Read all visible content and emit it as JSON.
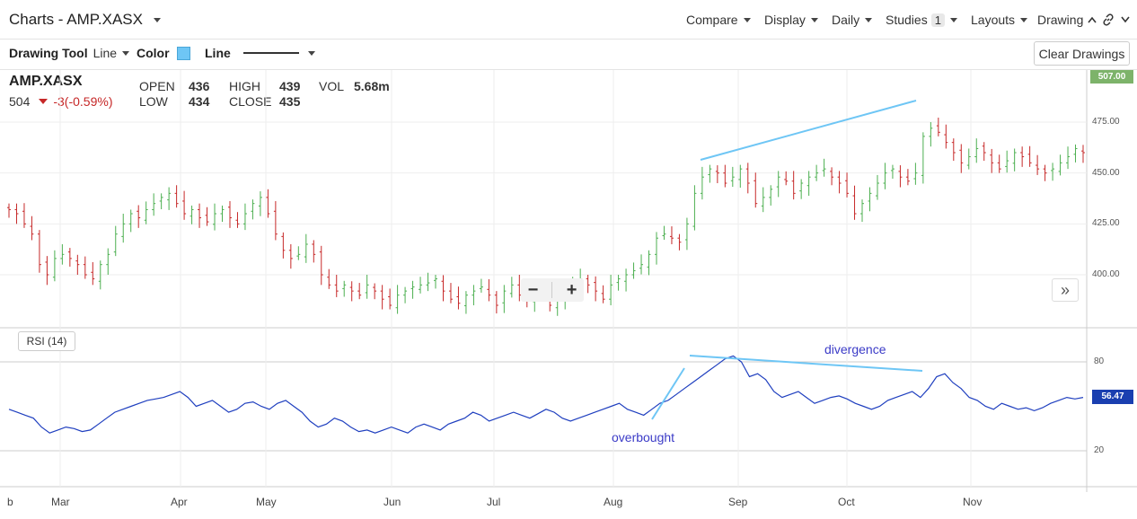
{
  "header": {
    "title": "Charts - AMP.XASX",
    "menus": [
      "Compare",
      "Display",
      "Daily",
      "Studies",
      "Layouts",
      "Drawing"
    ],
    "studies_count": "1"
  },
  "toolbar": {
    "drawing_tool_label": "Drawing Tool",
    "drawing_tool_value": "Line",
    "color_label": "Color",
    "color_value": "#6ec6f5",
    "line_label": "Line",
    "clear_button": "Clear Drawings"
  },
  "quote": {
    "symbol": "AMP.XASX",
    "last": "504",
    "change": "-3(-0.59%)",
    "open_label": "OPEN",
    "open": "436",
    "high_label": "HIGH",
    "high": "439",
    "vol_label": "VOL",
    "vol": "5.68m",
    "low_label": "LOW",
    "low": "434",
    "close_label": "CLOSE",
    "close": "435"
  },
  "price_axis": {
    "ticks": [
      "475.00",
      "450.00",
      "425.00",
      "400.00"
    ],
    "current_tag": "507.00"
  },
  "rsi": {
    "label": "RSI (14)",
    "ticks": [
      "80",
      "20"
    ],
    "current_tag": "56.47"
  },
  "annotations": {
    "overbought": "overbought",
    "divergence": "divergence"
  },
  "x_axis": {
    "labels": [
      "b",
      "Mar",
      "Apr",
      "May",
      "Jun",
      "Jul",
      "Aug",
      "Sep",
      "Oct",
      "Nov"
    ]
  },
  "colors": {
    "up_bar": "#4caf50",
    "down_bar": "#c62828",
    "rsi_line": "#1f3fbf",
    "drawing_line": "#6ec6f5"
  },
  "chart_data": {
    "type": "ohlc",
    "price_ylim": [
      380,
      510
    ],
    "rsi_ylim": [
      0,
      100
    ],
    "rsi_levels": [
      80,
      20
    ],
    "price_close_approx": [
      432,
      430,
      425,
      420,
      405,
      400,
      408,
      410,
      408,
      405,
      400,
      398,
      405,
      410,
      420,
      425,
      430,
      428,
      432,
      435,
      438,
      440,
      435,
      430,
      432,
      428,
      426,
      430,
      432,
      428,
      425,
      430,
      435,
      438,
      430,
      420,
      412,
      408,
      410,
      415,
      410,
      400,
      395,
      392,
      395,
      392,
      390,
      395,
      392,
      388,
      385,
      390,
      392,
      394,
      395,
      396,
      398,
      392,
      388,
      386,
      390,
      392,
      394,
      390,
      385,
      392,
      395,
      390,
      388,
      392,
      390,
      385,
      388,
      392,
      395,
      398,
      395,
      392,
      388,
      395,
      398,
      400,
      402,
      405,
      410,
      418,
      420,
      418,
      416,
      425,
      440,
      448,
      452,
      450,
      445,
      448,
      452,
      445,
      435,
      438,
      442,
      448,
      446,
      440,
      445,
      448,
      450,
      452,
      448,
      445,
      440,
      430,
      435,
      440,
      445,
      450,
      452,
      448,
      446,
      450,
      468,
      472,
      470,
      465,
      460,
      455,
      458,
      462,
      460,
      455,
      452,
      456,
      460,
      458,
      455,
      452,
      450,
      452,
      455,
      458,
      462,
      460
    ],
    "rsi_approx": [
      48,
      46,
      44,
      42,
      36,
      32,
      34,
      36,
      35,
      33,
      34,
      38,
      42,
      46,
      48,
      50,
      52,
      54,
      55,
      56,
      58,
      60,
      56,
      50,
      52,
      54,
      50,
      46,
      48,
      52,
      53,
      50,
      48,
      52,
      54,
      50,
      46,
      40,
      36,
      38,
      42,
      40,
      36,
      33,
      34,
      32,
      34,
      36,
      34,
      32,
      36,
      38,
      36,
      34,
      38,
      40,
      42,
      46,
      44,
      40,
      42,
      44,
      46,
      44,
      42,
      45,
      48,
      46,
      42,
      40,
      42,
      44,
      46,
      48,
      50,
      52,
      48,
      46,
      44,
      48,
      52,
      54,
      58,
      62,
      66,
      70,
      74,
      78,
      82,
      84,
      80,
      70,
      72,
      68,
      60,
      56,
      58,
      60,
      56,
      52,
      54,
      56,
      57,
      55,
      52,
      50,
      48,
      50,
      54,
      56,
      58,
      60,
      56,
      62,
      70,
      72,
      66,
      62,
      56,
      54,
      50,
      48,
      52,
      50,
      48,
      49,
      47,
      49,
      52,
      54,
      56,
      55,
      56
    ],
    "drawings": [
      "price trendline Aug-Oct highs",
      "rsi trendline Aug-Oct peaks",
      "overbought pointer"
    ]
  }
}
